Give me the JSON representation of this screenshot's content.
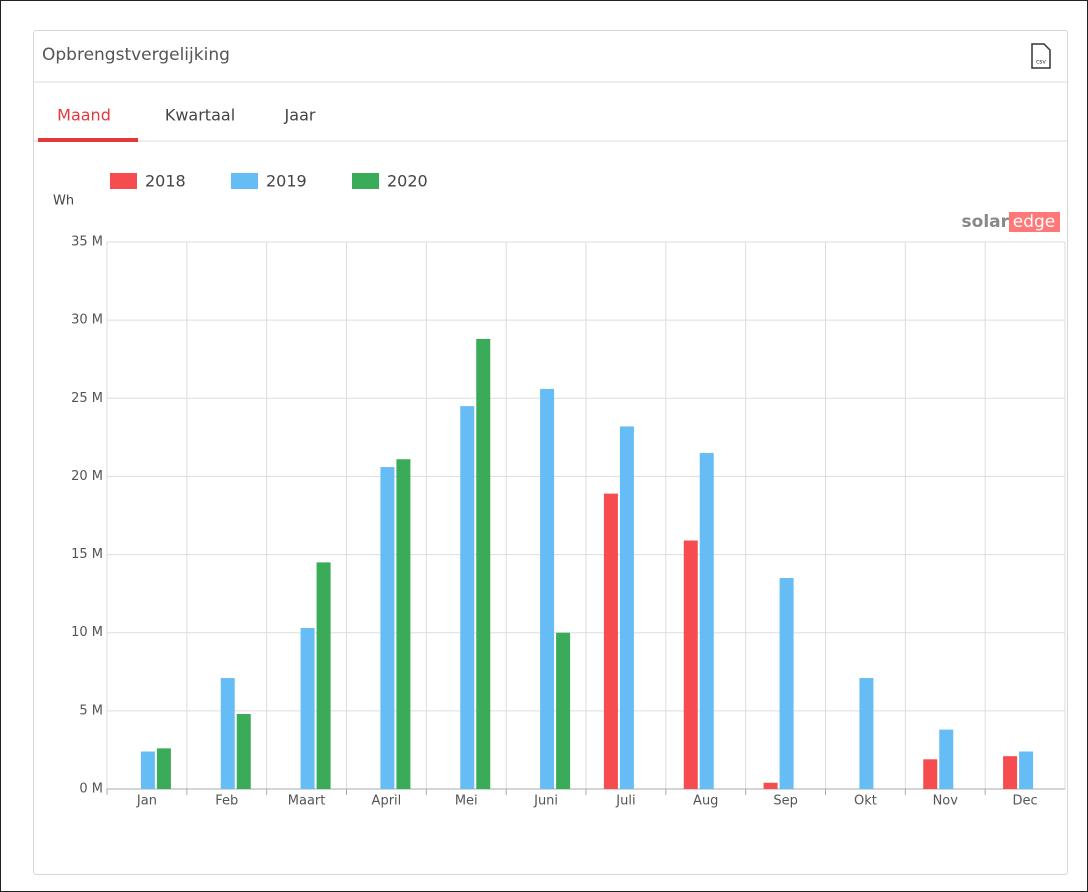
{
  "panel": {
    "title": "Opbrengstvergelijking",
    "csv_icon": "csv",
    "tabs": [
      "Maand",
      "Kwartaal",
      "Jaar"
    ],
    "active_tab": 0,
    "logo": [
      "solar",
      "edge"
    ]
  },
  "chart_data": {
    "type": "bar",
    "y_label": "Wh",
    "categories": [
      "Jan",
      "Feb",
      "Maart",
      "April",
      "Mei",
      "Juni",
      "Juli",
      "Aug",
      "Sep",
      "Okt",
      "Nov",
      "Dec"
    ],
    "series": [
      {
        "name": "2018",
        "color": "#f74c4f",
        "values": [
          null,
          null,
          null,
          null,
          null,
          null,
          18.9,
          15.9,
          0.4,
          null,
          1.9,
          2.1
        ]
      },
      {
        "name": "2019",
        "color": "#66bdf5",
        "values": [
          2.4,
          7.1,
          10.3,
          20.6,
          24.5,
          25.6,
          23.2,
          21.5,
          13.5,
          7.1,
          3.8,
          2.4
        ]
      },
      {
        "name": "2020",
        "color": "#3aab58",
        "values": [
          2.6,
          4.8,
          14.5,
          21.1,
          28.8,
          10.0,
          null,
          null,
          null,
          null,
          null,
          null
        ]
      }
    ],
    "ylim": [
      0,
      35
    ],
    "yticks": [
      {
        "value": 0,
        "label": "0 M"
      },
      {
        "value": 5,
        "label": "5 M"
      },
      {
        "value": 10,
        "label": "10 M"
      },
      {
        "value": 15,
        "label": "15 M"
      },
      {
        "value": 20,
        "label": "20 M"
      },
      {
        "value": 25,
        "label": "25 M"
      },
      {
        "value": 30,
        "label": "30 M"
      },
      {
        "value": 35,
        "label": "35 M"
      }
    ],
    "grid": true
  }
}
